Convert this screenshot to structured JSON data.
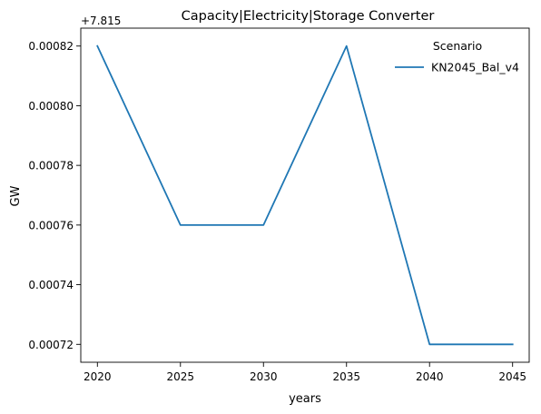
{
  "chart_data": {
    "type": "line",
    "title": "Capacity|Electricity|Storage Converter",
    "xlabel": "years",
    "ylabel": "GW",
    "offset_label": "+7.815",
    "x": [
      2020,
      2025,
      2030,
      2035,
      2040,
      2045
    ],
    "series": [
      {
        "name": "KN2045_Bal_v4",
        "color": "#1f77b4",
        "values": [
          0.00082,
          0.00076,
          0.00076,
          0.00082,
          0.00072,
          0.00072
        ]
      }
    ],
    "x_ticks": [
      "2020",
      "2025",
      "2030",
      "2035",
      "2040",
      "2045"
    ],
    "y_ticks": [
      "0.00072",
      "0.00074",
      "0.00076",
      "0.00078",
      "0.00080",
      "0.00082"
    ],
    "xlim": [
      2019,
      2046
    ],
    "ylim": [
      0.000714,
      0.000826
    ],
    "legend": {
      "title": "Scenario",
      "placement": "top-right"
    },
    "grid": false
  }
}
